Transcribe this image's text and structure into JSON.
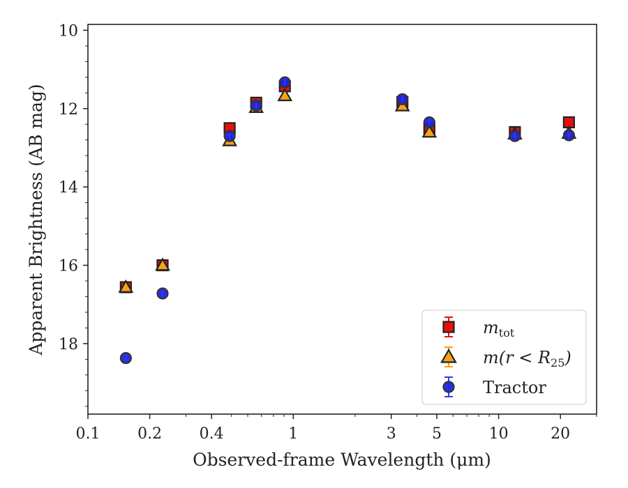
{
  "chart_data": {
    "type": "scatter",
    "xlabel": "Observed-frame Wavelength (μm)",
    "ylabel": "Apparent Brightness (AB mag)",
    "x_scale": "log",
    "y_inverted": true,
    "xlim": [
      0.1,
      30
    ],
    "ylim": [
      19.8,
      9.85
    ],
    "x_ticks": [
      {
        "value": 0.1,
        "label": "0.1"
      },
      {
        "value": 0.2,
        "label": "0.2"
      },
      {
        "value": 0.4,
        "label": "0.4"
      },
      {
        "value": 1,
        "label": "1"
      },
      {
        "value": 3,
        "label": "3"
      },
      {
        "value": 5,
        "label": "5"
      },
      {
        "value": 10,
        "label": "10"
      },
      {
        "value": 20,
        "label": "20"
      }
    ],
    "y_ticks": [
      {
        "value": 10,
        "label": "10"
      },
      {
        "value": 12,
        "label": "12"
      },
      {
        "value": 14,
        "label": "14"
      },
      {
        "value": 16,
        "label": "16"
      },
      {
        "value": 18,
        "label": "18"
      }
    ],
    "legend_position": "lower-right",
    "series": [
      {
        "label_main": "m",
        "label_sub": "tot",
        "marker": "square",
        "color": "#e8100c",
        "edge_color": "#222222",
        "error_color": "#e8100c",
        "x": [
          0.153,
          0.231,
          0.49,
          0.66,
          0.91,
          3.4,
          4.6,
          12.0,
          22.0
        ],
        "y": [
          16.56,
          16.0,
          12.5,
          11.85,
          11.43,
          11.83,
          12.5,
          12.6,
          12.35
        ]
      },
      {
        "label_main": "m(r < R",
        "label_sub": "25",
        "label_end": ")",
        "marker": "triangle",
        "color": "#f5a316",
        "edge_color": "#222222",
        "error_color": "#f5a316",
        "x": [
          0.153,
          0.231,
          0.49,
          0.66,
          0.91,
          3.4,
          4.6,
          12.0,
          22.0
        ],
        "y": [
          16.56,
          16.0,
          12.82,
          11.97,
          11.67,
          11.93,
          12.6,
          12.65,
          12.63
        ]
      },
      {
        "label_main": "Tractor",
        "marker": "circle",
        "color": "#1f24e0",
        "edge_color": "#333333",
        "error_color": "#2a3df0",
        "x": [
          0.153,
          0.231,
          0.49,
          0.66,
          0.91,
          3.4,
          4.6,
          12.0,
          22.0
        ],
        "y": [
          18.37,
          16.72,
          12.7,
          11.92,
          11.33,
          11.76,
          12.35,
          12.7,
          12.68
        ]
      }
    ]
  }
}
